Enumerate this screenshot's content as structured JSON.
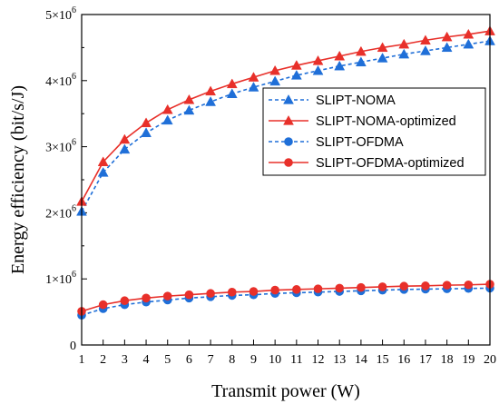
{
  "chart_data": {
    "type": "line",
    "xlabel": "Transmit power (W)",
    "ylabel": "Energy efficiency (bit/s/J)",
    "x": [
      1,
      2,
      3,
      4,
      5,
      6,
      7,
      8,
      9,
      10,
      11,
      12,
      13,
      14,
      15,
      16,
      17,
      18,
      19,
      20
    ],
    "xlim": [
      1,
      20
    ],
    "ylim": [
      0,
      5000000
    ],
    "x_ticks": [
      "1",
      "2",
      "3",
      "4",
      "5",
      "6",
      "7",
      "8",
      "9",
      "10",
      "11",
      "12",
      "13",
      "14",
      "15",
      "16",
      "17",
      "18",
      "19",
      "20"
    ],
    "y_ticks": [
      {
        "value": 0,
        "mant": "0",
        "exp": ""
      },
      {
        "value": 1000000,
        "mant": "1×10",
        "exp": "6"
      },
      {
        "value": 2000000,
        "mant": "2×10",
        "exp": "6"
      },
      {
        "value": 3000000,
        "mant": "3×10",
        "exp": "6"
      },
      {
        "value": 4000000,
        "mant": "4×10",
        "exp": "6"
      },
      {
        "value": 5000000,
        "mant": "5×10",
        "exp": "6"
      }
    ],
    "grid": false,
    "legend_position": "top-right",
    "series": [
      {
        "name": "SLIPT-NOMA",
        "color": "#1f6fd8",
        "line_style": "dashed",
        "marker": "triangle",
        "values": [
          2020000,
          2610000,
          2960000,
          3210000,
          3400000,
          3550000,
          3680000,
          3800000,
          3900000,
          3990000,
          4080000,
          4150000,
          4220000,
          4280000,
          4340000,
          4400000,
          4450000,
          4500000,
          4550000,
          4600000
        ]
      },
      {
        "name": "SLIPT-NOMA-optimized",
        "color": "#e8302a",
        "line_style": "solid",
        "marker": "triangle",
        "values": [
          2170000,
          2770000,
          3110000,
          3360000,
          3560000,
          3710000,
          3840000,
          3950000,
          4050000,
          4150000,
          4230000,
          4300000,
          4370000,
          4440000,
          4500000,
          4550000,
          4610000,
          4660000,
          4700000,
          4750000
        ]
      },
      {
        "name": "SLIPT-OFDMA",
        "color": "#1f6fd8",
        "line_style": "dashed",
        "marker": "circle",
        "values": [
          450000,
          550000,
          610000,
          650000,
          680000,
          710000,
          730000,
          750000,
          760000,
          780000,
          790000,
          800000,
          810000,
          820000,
          830000,
          840000,
          845000,
          850000,
          855000,
          860000
        ]
      },
      {
        "name": "SLIPT-OFDMA-optimized",
        "color": "#e8302a",
        "line_style": "solid",
        "marker": "circle",
        "values": [
          510000,
          610000,
          670000,
          710000,
          740000,
          760000,
          780000,
          800000,
          810000,
          830000,
          840000,
          850000,
          860000,
          870000,
          880000,
          890000,
          895000,
          905000,
          910000,
          920000
        ]
      }
    ]
  }
}
